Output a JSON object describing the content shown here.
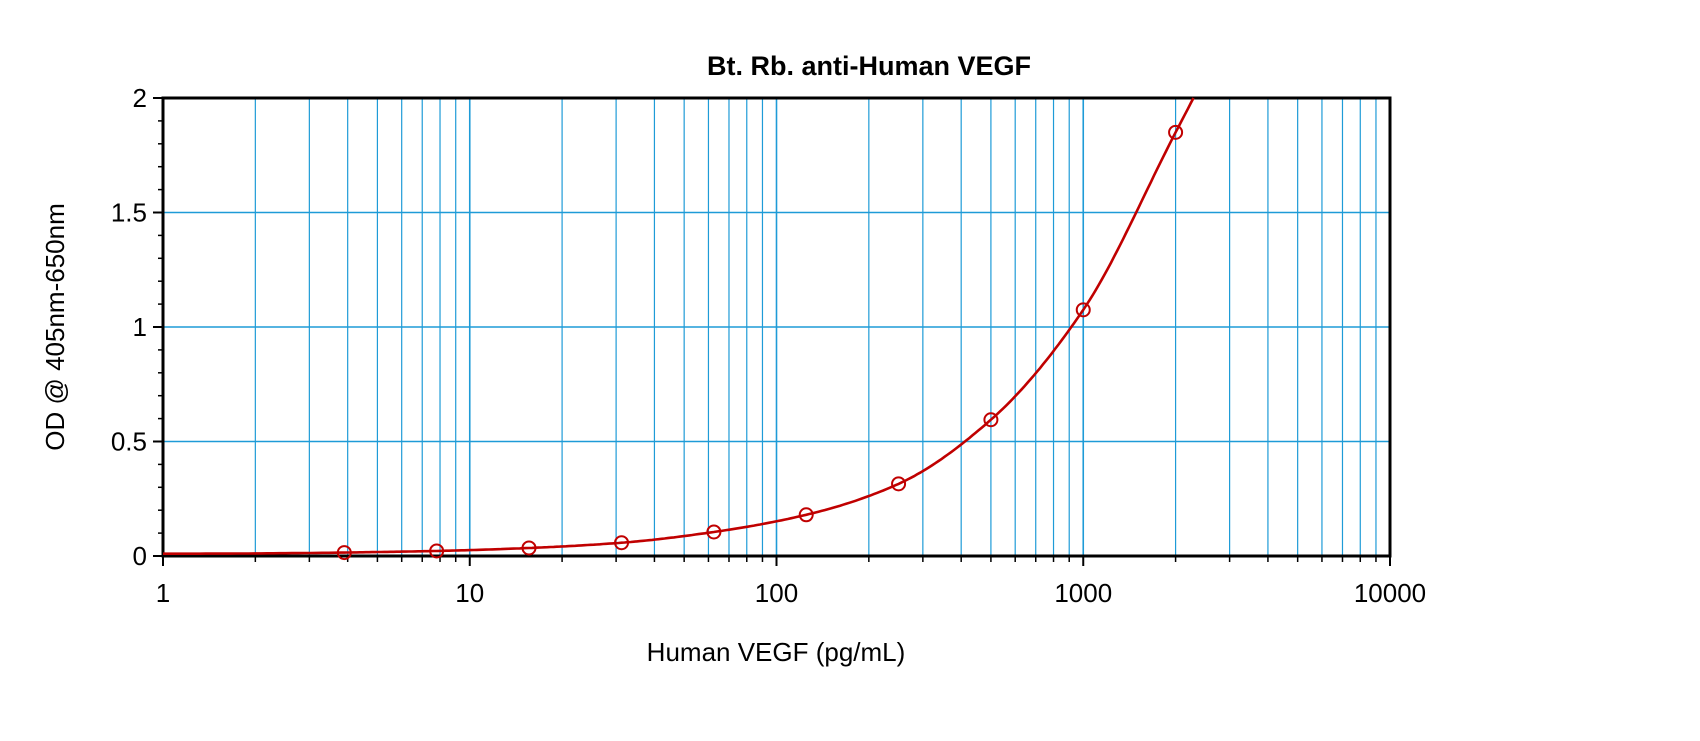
{
  "chart_data": {
    "type": "scatter",
    "title": "Bt. Rb. anti-Human VEGF",
    "xlabel": "Human VEGF (pg/mL)",
    "ylabel": "OD @ 405nm-650nm",
    "x_scale": "log",
    "xlim": [
      1,
      10000
    ],
    "ylim": [
      0,
      2
    ],
    "x_ticks": [
      "1",
      "10",
      "100",
      "1000",
      "10000"
    ],
    "y_ticks": [
      "0",
      "0.5",
      "1",
      "1.5",
      "2"
    ],
    "grid": true,
    "legend": "none",
    "colors": {
      "grid": "#1e9bd7",
      "series": "#c00000",
      "axis": "#000000"
    },
    "series": [
      {
        "marker": "open-circle",
        "x": [
          3.9,
          7.8,
          15.6,
          31.25,
          62.5,
          125,
          250,
          500,
          1000,
          2000
        ],
        "y": [
          0.015,
          0.022,
          0.035,
          0.058,
          0.105,
          0.18,
          0.315,
          0.595,
          1.075,
          1.85
        ]
      }
    ]
  }
}
